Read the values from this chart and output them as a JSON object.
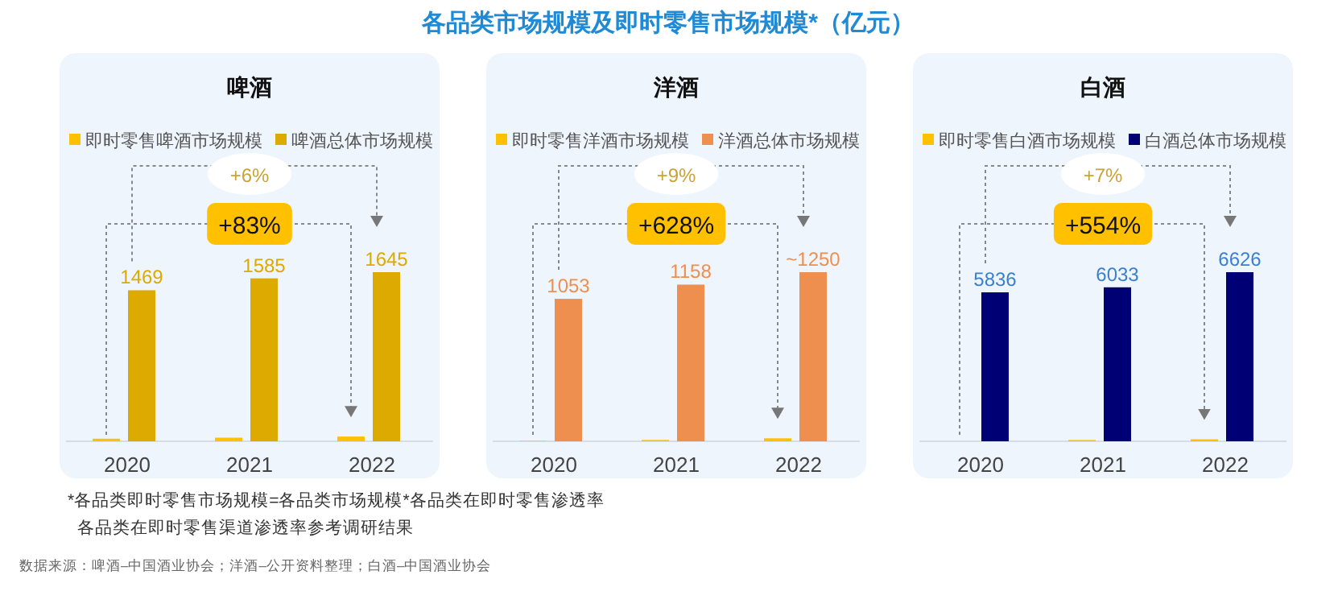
{
  "chart_data": [
    {
      "type": "other",
      "title": "各品类市场规模及即时零售市场规模*（亿元）",
      "annotations": [
        "*各品类即时零售市场规模=各品类市场规模*各品类在即时零售渗透率",
        "各品类在即时零售渠道渗透率参考调研结果",
        "数据来源：啤酒–中国酒业协会；洋酒–公开资料整理；白酒–中国酒业协会"
      ]
    },
    {
      "type": "bar",
      "title": "啤酒",
      "categories": [
        "2020",
        "2021",
        "2022"
      ],
      "legend": "top",
      "annotations": [
        "+6%",
        "+83%"
      ],
      "series": [
        {
          "name": "即时零售啤酒市场规模",
          "color": "#ffc000",
          "values": [
            25,
            35,
            46
          ]
        },
        {
          "name": "啤酒总体市场规模",
          "color": "#dcaa00",
          "values": [
            1469,
            1585,
            1645
          ],
          "value_labels": [
            "1469",
            "1585",
            "1645"
          ]
        }
      ]
    },
    {
      "type": "bar",
      "title": "洋酒",
      "categories": [
        "2020",
        "2021",
        "2022"
      ],
      "legend": "top",
      "annotations": [
        "+9%",
        "+628%"
      ],
      "series": [
        {
          "name": "即时零售洋酒市场规模",
          "color": "#ffc000",
          "values": [
            3,
            10,
            22
          ]
        },
        {
          "name": "洋酒总体市场规模",
          "color": "#ef8f4f",
          "values": [
            1053,
            1158,
            1250
          ],
          "value_labels": [
            "1053",
            "1158",
            "~1250"
          ]
        }
      ]
    },
    {
      "type": "bar",
      "title": "白酒",
      "categories": [
        "2020",
        "2021",
        "2022"
      ],
      "legend": "top",
      "annotations": [
        "+7%",
        "+554%"
      ],
      "series": [
        {
          "name": "即时零售白酒市场规模",
          "color": "#ffc000",
          "values": [
            null,
            50,
            78
          ]
        },
        {
          "name": "白酒总体市场规模",
          "color": "#000075",
          "values": [
            5836,
            6033,
            6626
          ],
          "value_labels": [
            "5836",
            "6033",
            "6626"
          ]
        }
      ]
    }
  ]
}
